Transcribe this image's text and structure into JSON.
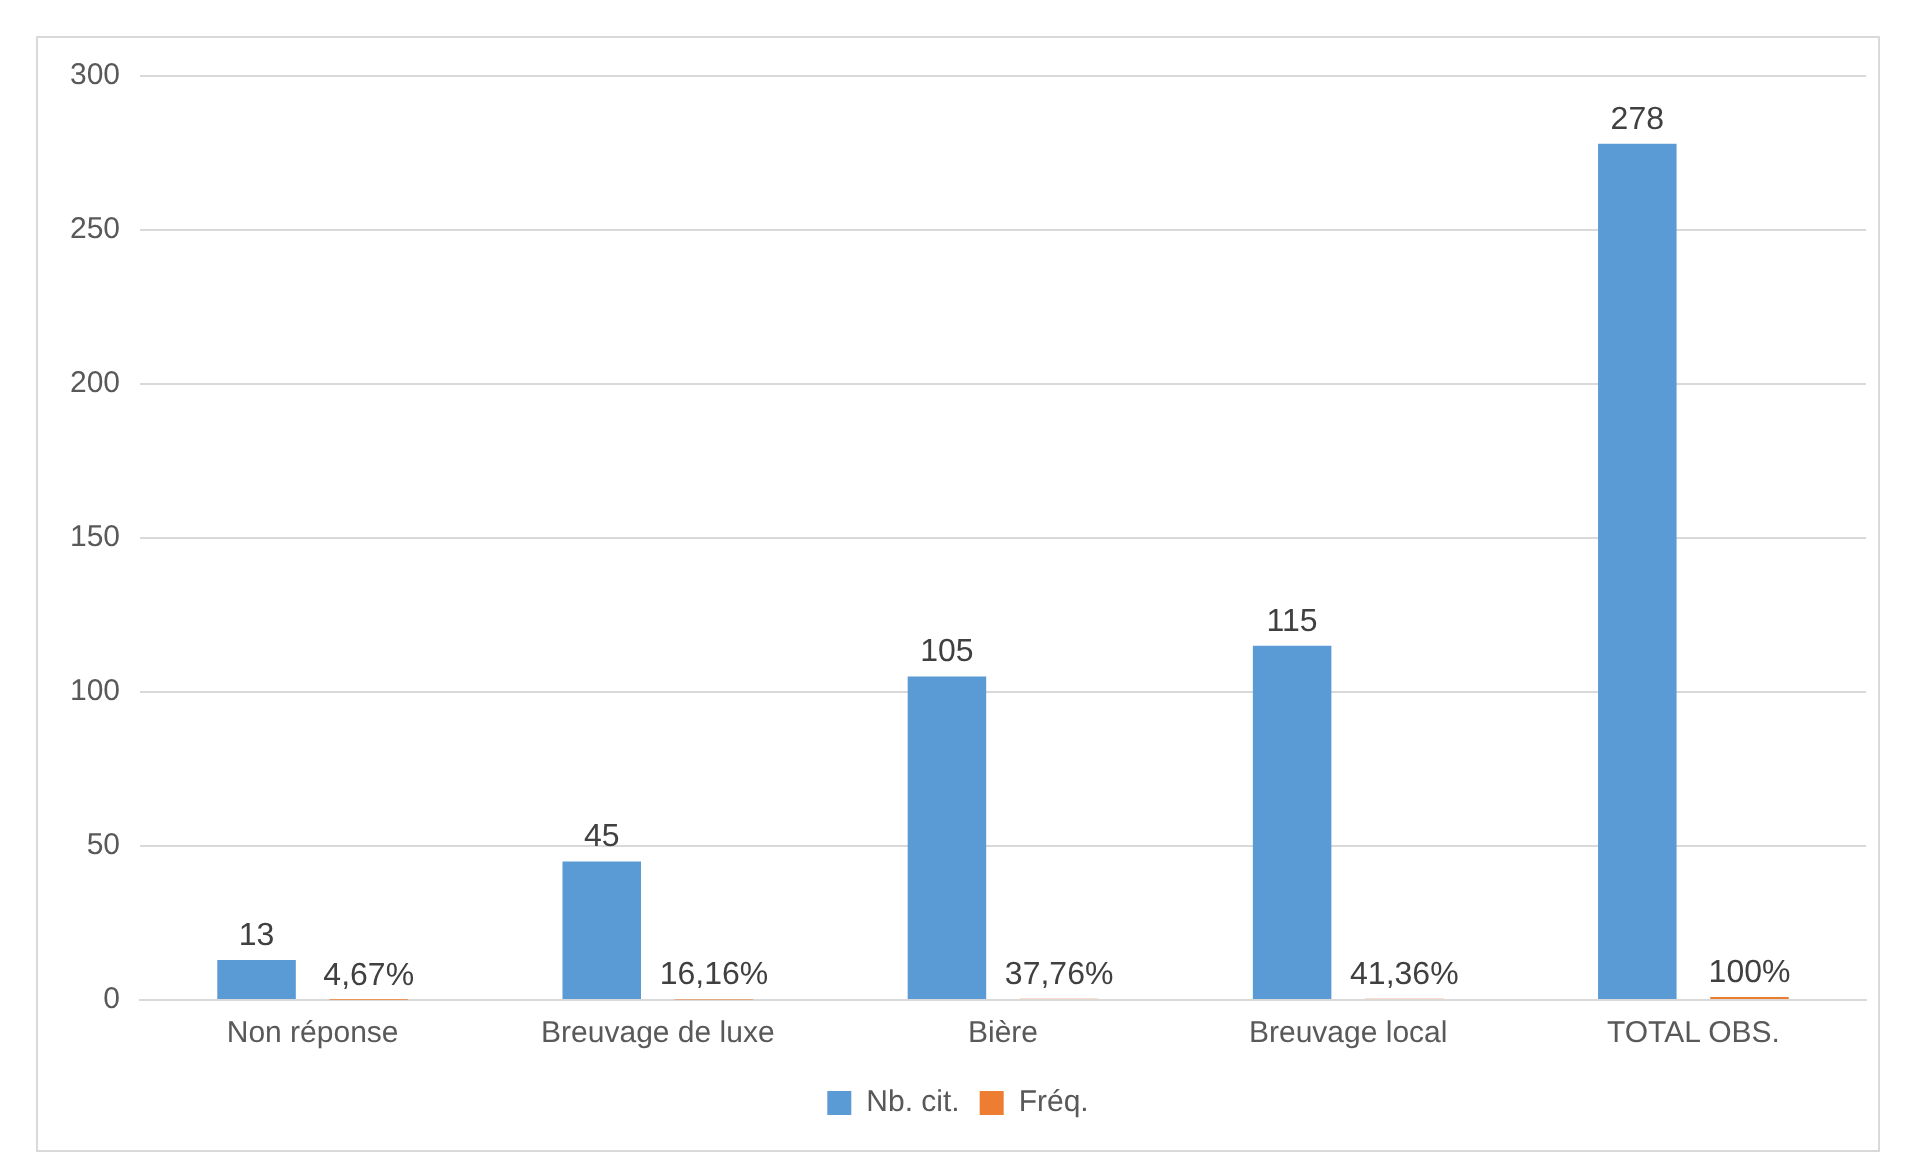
{
  "chart_data": {
    "type": "bar",
    "categories": [
      "Non réponse",
      "Breuvage de luxe",
      "Bière",
      "Breuvage local",
      "TOTAL OBS."
    ],
    "series": [
      {
        "name": "Nb. cit.",
        "color": "#5b9bd5",
        "values": [
          13,
          45,
          105,
          115,
          278
        ],
        "value_labels": [
          "13",
          "45",
          "105",
          "115",
          "278"
        ]
      },
      {
        "name": "Fréq.",
        "color": "#ed7d31",
        "values": [
          0.0467,
          0.1616,
          0.3776,
          0.4136,
          1
        ],
        "value_labels": [
          "4,67%",
          "16,16%",
          "37,76%",
          "41,36%",
          "100%"
        ]
      }
    ],
    "ylim": [
      0,
      300
    ],
    "yticks": [
      0,
      50,
      100,
      150,
      200,
      250,
      300
    ],
    "grid": "y",
    "legend": "bottom"
  }
}
